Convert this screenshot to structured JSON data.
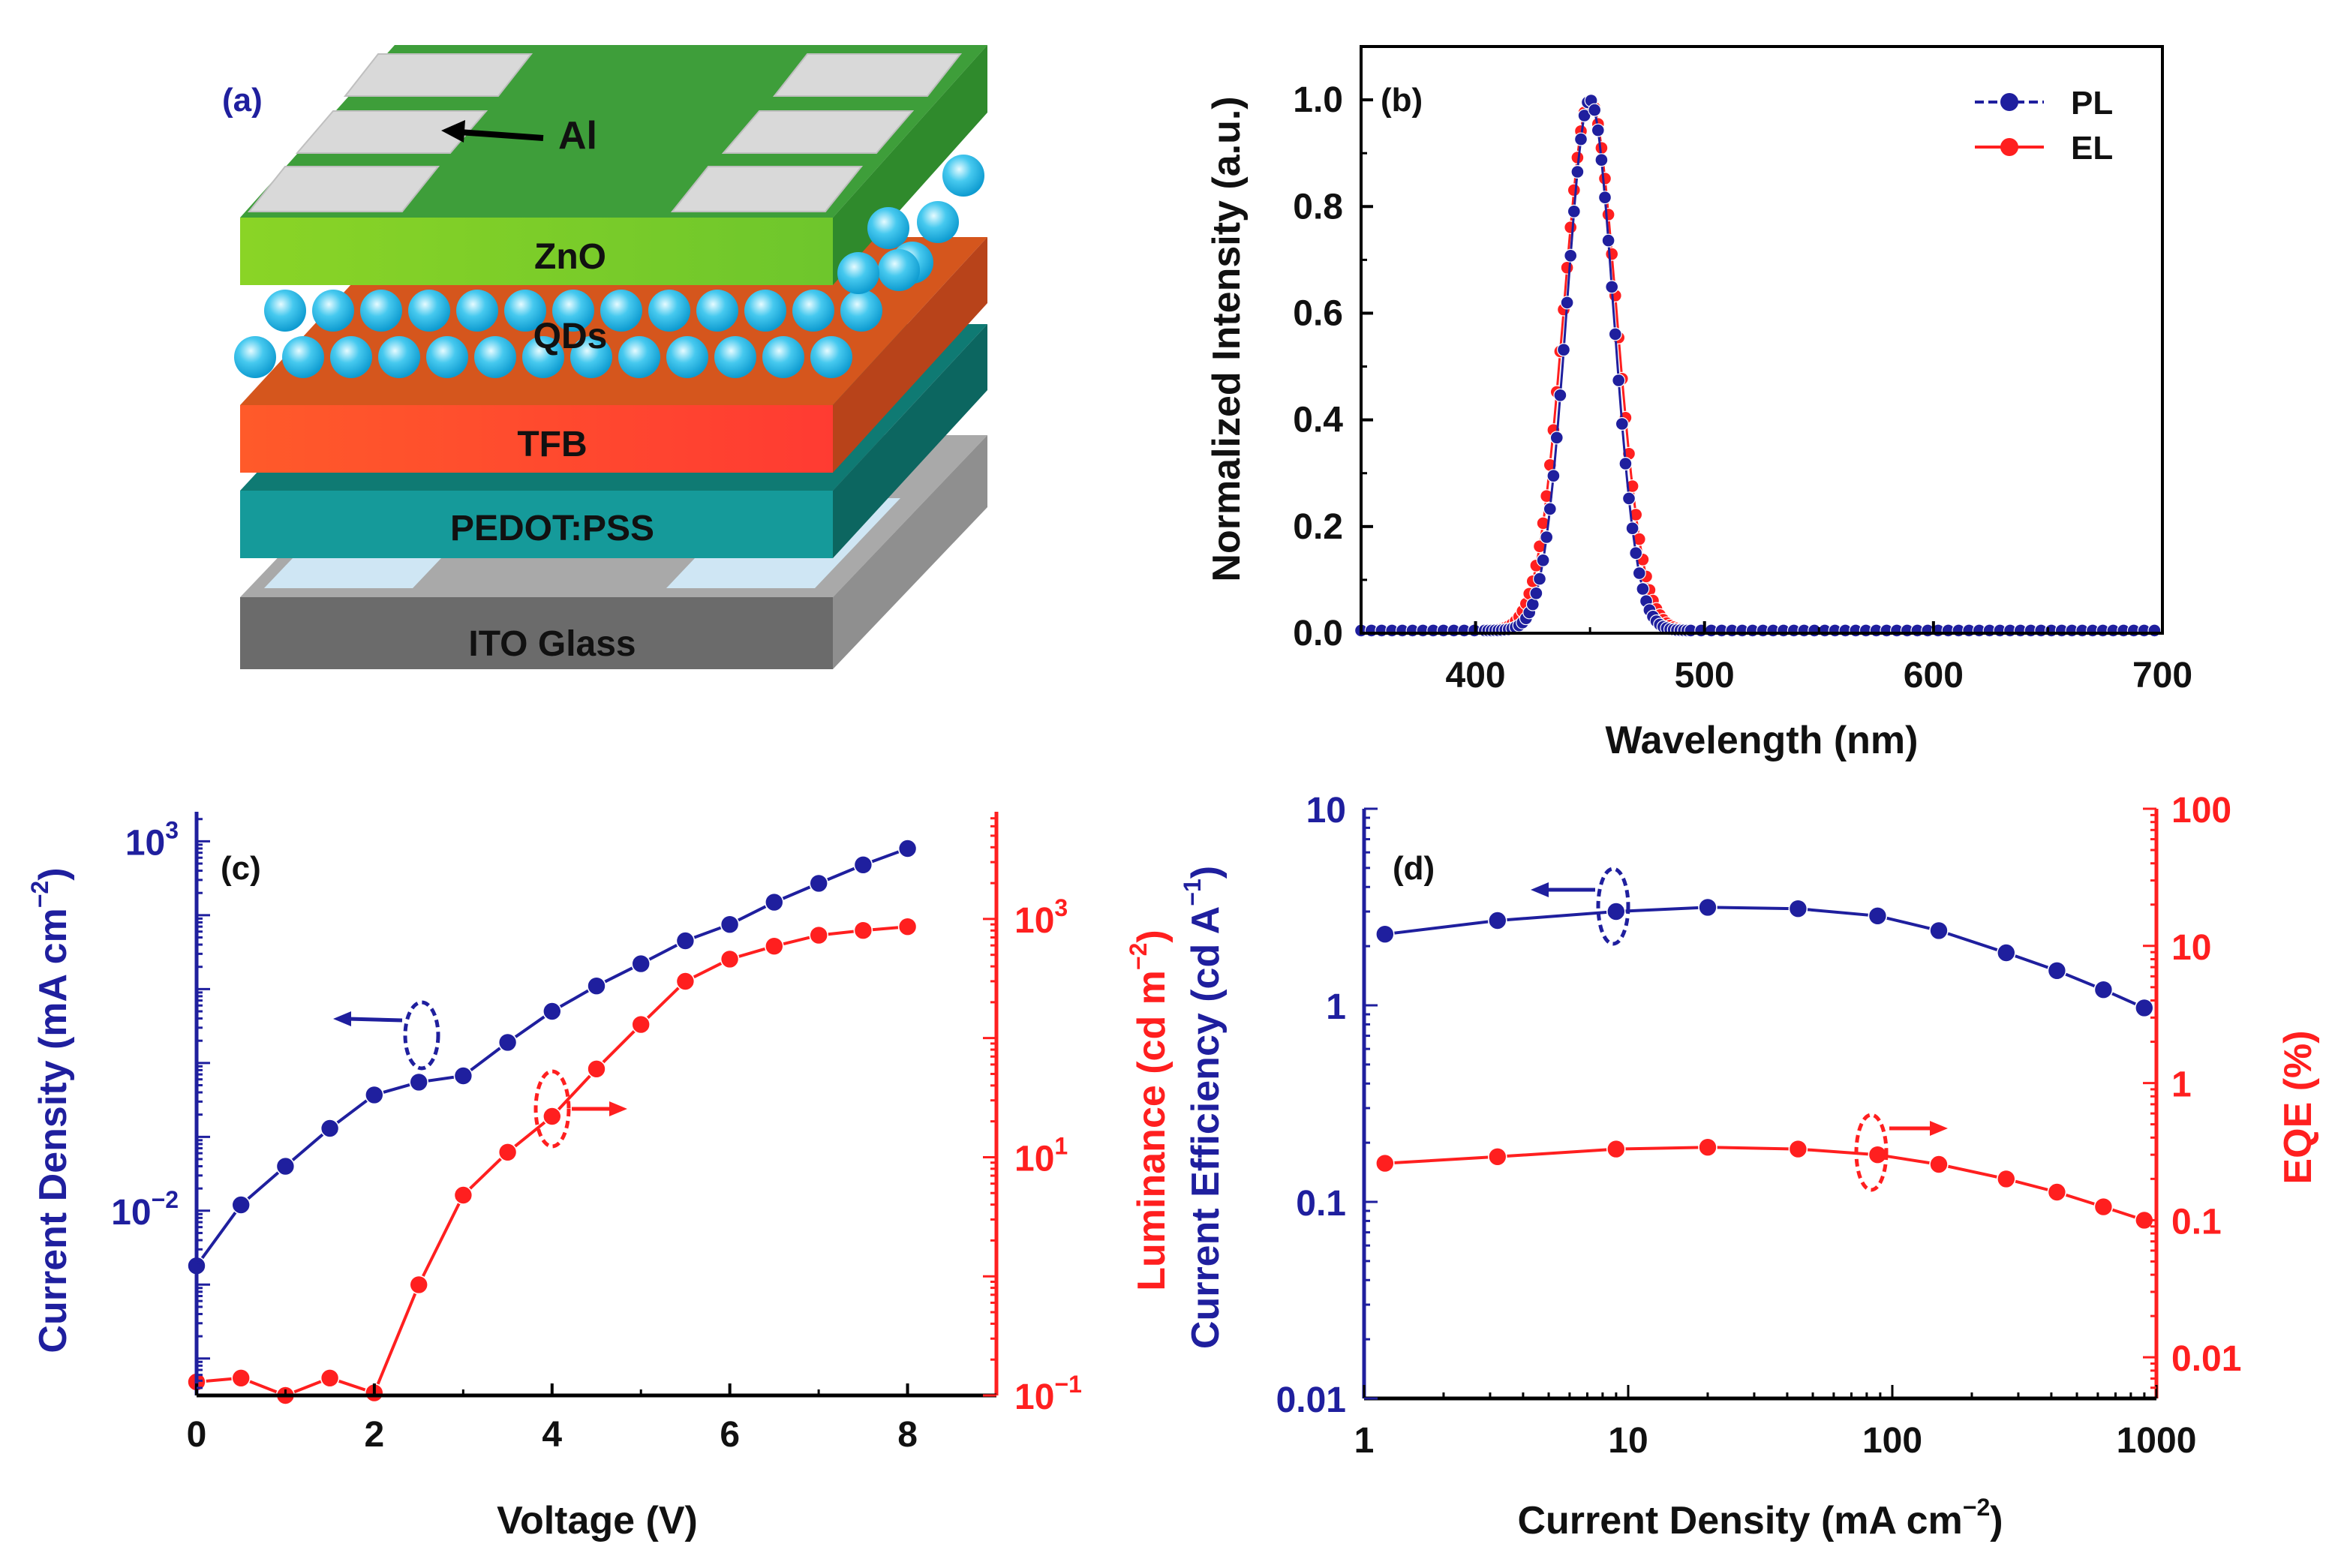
{
  "panel_a": {
    "label": "(a)",
    "layers": {
      "al": "Al",
      "zno": "ZnO",
      "qds": "QDs",
      "tfb": "TFB",
      "pedot": "PEDOT:PSS",
      "ito": "ITO Glass"
    },
    "colors": {
      "al_top": "#3e9e3a",
      "zno_front": "#7fce2a",
      "zno_top": "#5bb430",
      "qd": "#29bde8",
      "tfb_front": "#ff4a2e",
      "tfb_top": "#d5561d",
      "pedot_front": "#159a9a",
      "pedot_top": "#0f7a73",
      "ito_front": "#6b6b6b",
      "ito_top": "#a8a8a8",
      "electrode": "#d9d9d9"
    }
  },
  "chart_data": [
    {
      "id": "b",
      "type": "line",
      "panel_label": "(b)",
      "title": "",
      "xlabel": "Wavelength (nm)",
      "ylabel": "Normalized Intensity (a.u.)",
      "xlim": [
        350,
        700
      ],
      "ylim": [
        0,
        1.1
      ],
      "xticks": [
        400,
        500,
        600,
        700
      ],
      "xtick_labels": [
        "400",
        "500",
        "600",
        "700"
      ],
      "yticks": [
        0.0,
        0.2,
        0.4,
        0.6,
        0.8,
        1.0
      ],
      "ytick_labels": [
        "0.0",
        "0.2",
        "0.4",
        "0.6",
        "0.8",
        "1.0"
      ],
      "legend": "top-right",
      "series": [
        {
          "name": "PL",
          "color": "#1f1f9e",
          "peak": 450,
          "fwhm": 24,
          "baseline": 0.005
        },
        {
          "name": "EL",
          "color": "#ff1f1f",
          "peak": 450,
          "fwhm": 27,
          "baseline": 0.005
        }
      ]
    },
    {
      "id": "c",
      "type": "line",
      "panel_label": "(c)",
      "title": "",
      "xlabel": "Voltage (V)",
      "ylabel_left": "Current Density (mA cm",
      "ylabel_left_sup": "−2",
      "ylabel_right": "Luminance (cd m",
      "ylabel_right_sup": "−2",
      "xlim": [
        0,
        9
      ],
      "xticks": [
        0,
        2,
        4,
        6,
        8
      ],
      "xtick_labels": [
        "0",
        "2",
        "4",
        "6",
        "8"
      ],
      "ylim_left_log10": [
        -4.5,
        3.4
      ],
      "ylim_right_log10": [
        -1,
        3.9
      ],
      "left_ticks": [
        {
          "base": "10",
          "exp": "−2",
          "log": -2
        },
        {
          "base": "10",
          "exp": "3",
          "log": 3
        }
      ],
      "right_ticks": [
        {
          "base": "10",
          "exp": "−1",
          "log": -1
        },
        {
          "base": "10",
          "exp": "1",
          "log": 1
        },
        {
          "base": "10",
          "exp": "3",
          "log": 3
        }
      ],
      "series": [
        {
          "name": "Current Density",
          "axis": "left",
          "color": "#1f1f9e",
          "x": [
            0,
            0.5,
            1,
            1.5,
            2,
            2.5,
            3,
            3.5,
            4,
            4.5,
            5,
            5.5,
            6,
            6.5,
            7,
            7.5,
            8
          ],
          "y": [
            0.0018,
            0.012,
            0.04,
            0.13,
            0.37,
            0.55,
            0.67,
            1.9,
            5.0,
            11,
            22,
            45,
            75,
            150,
            270,
            480,
            800
          ]
        },
        {
          "name": "Luminance",
          "axis": "right",
          "color": "#ff1f1f",
          "x": [
            0,
            0.5,
            1,
            1.5,
            2,
            2.5,
            3,
            3.5,
            4,
            4.5,
            5,
            5.5,
            6,
            6.5,
            7,
            7.5,
            8
          ],
          "y": [
            0.13,
            0.14,
            0.1,
            0.14,
            0.105,
            0.85,
            4.8,
            11,
            22,
            55,
            130,
            300,
            460,
            590,
            730,
            800,
            860
          ]
        }
      ]
    },
    {
      "id": "d",
      "type": "line",
      "panel_label": "(d)",
      "title": "",
      "xlabel": "Current Density (mA cm",
      "xlabel_sup": "−2",
      "ylabel_left": "Current Efficiency (cd A",
      "ylabel_left_sup": "−1",
      "ylabel_right": "EQE (%)",
      "xlim_log10": [
        0,
        3
      ],
      "xticks": [
        1,
        10,
        100,
        1000
      ],
      "xtick_labels": [
        "1",
        "10",
        "100",
        "1000"
      ],
      "ylim_left_log10": [
        -2,
        1
      ],
      "ylim_right_log10": [
        -2.3,
        2
      ],
      "left_ticks": [
        {
          "v": 10,
          "label": "10"
        },
        {
          "v": 1,
          "label": "1"
        },
        {
          "v": 0.1,
          "label": "0.1"
        },
        {
          "v": 0.01,
          "label": "0.01"
        }
      ],
      "right_ticks": [
        {
          "v": 100,
          "label": "100"
        },
        {
          "v": 10,
          "label": "10"
        },
        {
          "v": 1,
          "label": "1"
        },
        {
          "v": 0.1,
          "label": "0.1"
        },
        {
          "v": 0.01,
          "label": "0.01"
        }
      ],
      "series": [
        {
          "name": "Current Efficiency",
          "axis": "left",
          "color": "#1f1f9e",
          "x": [
            1.2,
            3.2,
            9,
            20,
            44,
            88,
            150,
            270,
            420,
            630,
            900
          ],
          "y": [
            2.3,
            2.7,
            3.0,
            3.15,
            3.1,
            2.85,
            2.4,
            1.85,
            1.5,
            1.2,
            0.97
          ]
        },
        {
          "name": "EQE",
          "axis": "right",
          "color": "#ff1f1f",
          "x": [
            1.2,
            3.2,
            9,
            20,
            44,
            88,
            150,
            270,
            420,
            630,
            900
          ],
          "y": [
            0.26,
            0.29,
            0.33,
            0.34,
            0.33,
            0.3,
            0.255,
            0.2,
            0.16,
            0.125,
            0.1
          ]
        }
      ]
    }
  ]
}
